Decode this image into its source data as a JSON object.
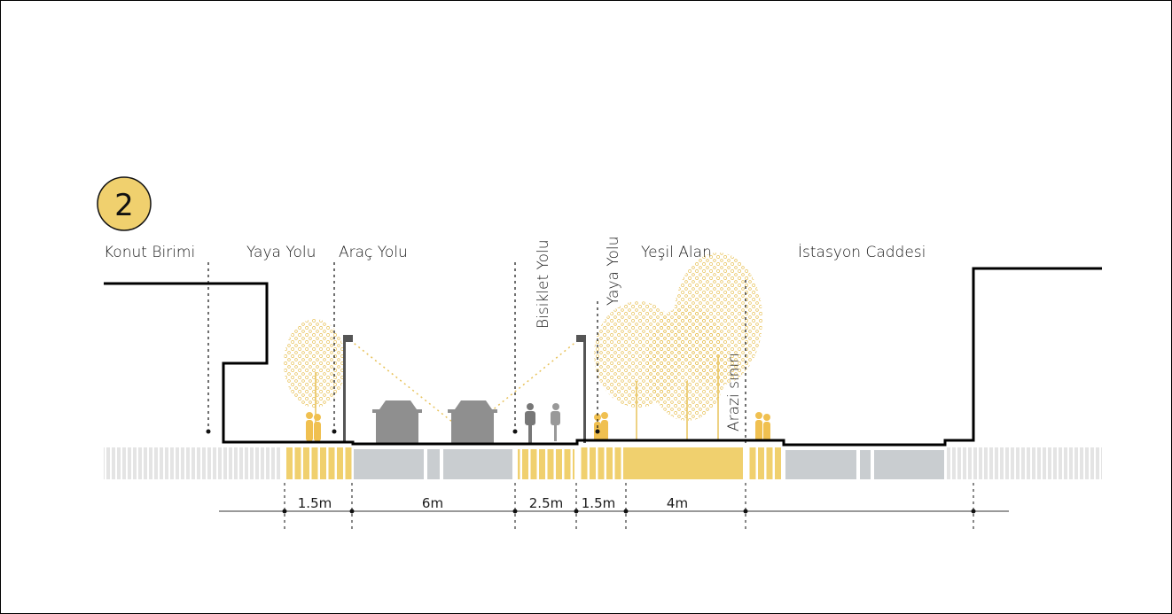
{
  "section_number": "2",
  "labels": {
    "konut_birimi": "Konut Birimi",
    "yaya_yolu_1": "Yaya Yolu",
    "arac_yolu": "Araç Yolu",
    "bisiklet_yolu": "Bisiklet Yolu",
    "yaya_yolu_2": "Yaya Yolu",
    "yesil_alan": "Yeşil Alan",
    "istasyon_caddesi": "İstasyon Caddesi",
    "arazi_siniri": "Arazi sınırı"
  },
  "dimensions": [
    "1.5m",
    "6m",
    "2.5m",
    "1.5m",
    "4m"
  ],
  "colors": {
    "accent_yellow": "#f0d06e",
    "road_gray": "#c9cdd0",
    "light_gray": "#e4e4e4",
    "figure_gray": "#8a8a8a"
  }
}
